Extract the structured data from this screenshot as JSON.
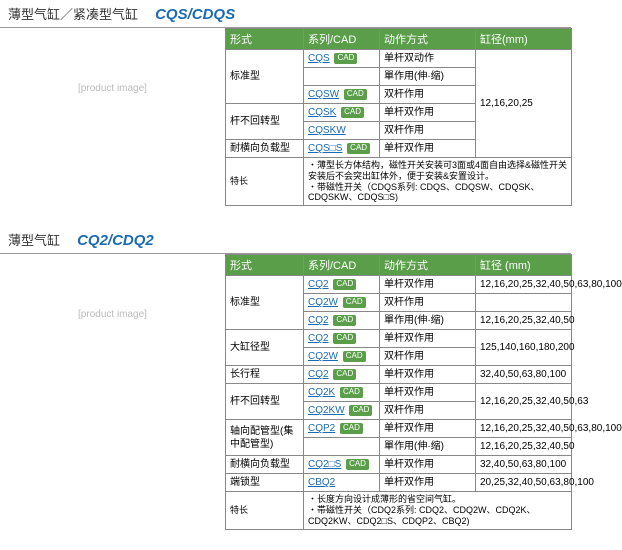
{
  "colors": {
    "header_bg": "#5a9e4a",
    "link": "#1a6bb3",
    "border": "#888888"
  },
  "s1": {
    "title": "薄型气缸／紧凑型气缸",
    "code": "CQS/CDQS",
    "headers": [
      "形式",
      "系列/CAD",
      "动作方式",
      "缸径(mm)"
    ],
    "bore": "12,16,20,25",
    "rows": [
      {
        "form": "标准型",
        "rs": 3,
        "series": "CQS",
        "cad": true,
        "action": "单杆双动作"
      },
      {
        "series": "",
        "cad": false,
        "action": "單作用(伸·缩)"
      },
      {
        "series": "CQSW",
        "cad": true,
        "action": "双杆作用"
      },
      {
        "form": "杆不回转型",
        "rs": 2,
        "series": "CQSK",
        "cad": true,
        "action": "单杆双作用"
      },
      {
        "series": "CQSKW",
        "cad": false,
        "action": "双杆作用"
      },
      {
        "form": "耐横向负载型",
        "rs": 1,
        "series": "CQS□S",
        "cad": true,
        "action": "单杆双作用"
      }
    ],
    "feature_label": "特长",
    "features": "・薄型长方体结构，磁性开关安装可3面或4面自由选择&磁性开关安装后不会突出缸体外，便于安装&安置设计。\n・带磁性开关（CDQS系列: CDQS、CDQSW、CDQSK、CDQSKW、CDQS□S)"
  },
  "s2": {
    "title": "薄型气缸",
    "code": "CQ2/CDQ2",
    "headers": [
      "形式",
      "系列/CAD",
      "动作方式",
      "缸径 (mm)"
    ],
    "rows": [
      {
        "form": "标准型",
        "rs": 3,
        "series": "CQ2",
        "cad": true,
        "action": "单杆双作用",
        "bore": "12,16,20,25,32,40,50,63,80,100"
      },
      {
        "series": "CQ2W",
        "cad": true,
        "action": "双杆作用",
        "bore": ""
      },
      {
        "series": "CQ2",
        "cad": true,
        "action": "單作用(伸·缩)",
        "bore": "12,16,20,25,32,40,50"
      },
      {
        "form": "大缸径型",
        "rs": 2,
        "series": "CQ2",
        "cad": true,
        "action": "单杆双作用",
        "bore": "125,140,160,180,200",
        "brs": 2
      },
      {
        "series": "CQ2W",
        "cad": true,
        "action": "双杆作用"
      },
      {
        "form": "长行程",
        "rs": 1,
        "series": "CQ2",
        "cad": true,
        "action": "单杆双作用",
        "bore": "32,40,50,63,80,100"
      },
      {
        "form": "杆不回转型",
        "rs": 2,
        "series": "CQ2K",
        "cad": true,
        "action": "单杆双作用",
        "bore": "12,16,20,25,32,40,50,63",
        "brs": 2
      },
      {
        "series": "CQ2KW",
        "cad": true,
        "action": "双杆作用"
      },
      {
        "form": "轴向配管型(集中配管型)",
        "rs": 2,
        "series": "CQP2",
        "cad": true,
        "action": "单杆双作用",
        "bore": "12,16,20,25,32,40,50,63,80,100"
      },
      {
        "series": "",
        "cad": false,
        "action": "單作用(伸·缩)",
        "bore": "12,16,20,25,32,40,50"
      },
      {
        "form": "耐横向负载型",
        "rs": 1,
        "series": "CQ2□S",
        "cad": true,
        "action": "单杆双作用",
        "bore": "32,40,50,63,80,100"
      },
      {
        "form": "端锁型",
        "rs": 1,
        "series": "CBQ2",
        "cad": false,
        "action": "单杆双作用",
        "bore": "20,25,32,40,50,63,80,100"
      }
    ],
    "feature_label": "特长",
    "features": "・长度方向设计成薄形的省空间气缸。\n・帯磁性开关（CDQ2系列: CDQ2、CDQ2W、CDQ2K、CDQ2KW、CDQ2□S、CDQP2、CBQ2)"
  }
}
